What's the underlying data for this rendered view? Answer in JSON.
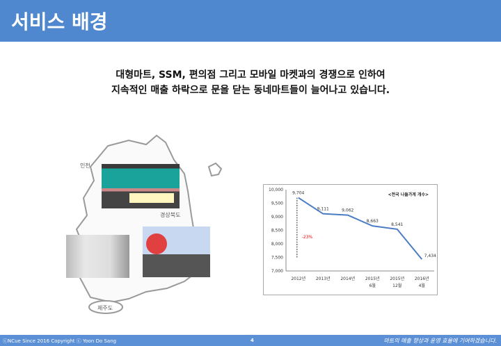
{
  "header": {
    "title": "서비스 배경"
  },
  "intro": {
    "line1": "대형마트, SSM, 편의점 그리고 모바일 마켓과의 경쟁으로 인하여",
    "line2": "지속적인 매출 하락으로 문을 닫는 동네마트들이 늘어나고 있습니다."
  },
  "map": {
    "labels": [
      "인천",
      "경상북도",
      "제주도"
    ]
  },
  "chart_data": {
    "type": "line",
    "title": "<전국 나들가게 개수>",
    "categories": [
      "2012년",
      "2013년",
      "2014년",
      "2015년\n6월",
      "2015년\n12월",
      "2016년\n4월"
    ],
    "category_lines": [
      [
        "2012년",
        ""
      ],
      [
        "2013년",
        ""
      ],
      [
        "2014년",
        ""
      ],
      [
        "2015년",
        "6월"
      ],
      [
        "2015년",
        "12월"
      ],
      [
        "2016년",
        "4월"
      ]
    ],
    "values": [
      9704,
      9111,
      9062,
      8663,
      8541,
      7434
    ],
    "data_labels": [
      "9,704",
      "9,111",
      "9,062",
      "8,663",
      "8,541",
      "7,434"
    ],
    "yticks": [
      "10,000",
      "9,500",
      "9,000",
      "8,500",
      "8,000",
      "7,500",
      "7,000"
    ],
    "ylim": [
      7000,
      10000
    ],
    "annotation": "-23%",
    "line_color": "#4a7cc4",
    "annotation_color": "#ff0000"
  },
  "footer": {
    "copyright": "ⓒNCue  Since 2016  Copyright ⓒ Yoon Do Sang",
    "page": "4",
    "slogan": "마트의 매출 향상과 운영 효율에 기여하겠습니다."
  }
}
